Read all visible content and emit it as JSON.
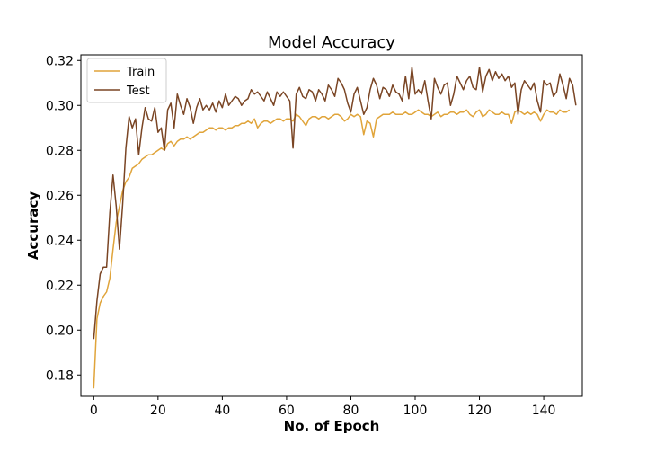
{
  "chart_data": {
    "type": "line",
    "title": "Model Accuracy",
    "xlabel": "No. of Epoch",
    "ylabel": "Accuracy",
    "xlim": [
      -4,
      152
    ],
    "ylim": [
      0.1705,
      0.3225
    ],
    "xticks": [
      0,
      20,
      40,
      60,
      80,
      100,
      120,
      140
    ],
    "yticks": [
      0.18,
      0.2,
      0.22,
      0.24,
      0.26,
      0.28,
      0.3,
      0.32
    ],
    "legend_position": "top-left",
    "grid": false,
    "series": [
      {
        "name": "Train",
        "color": "#e0a43a",
        "values": [
          0.174,
          0.205,
          0.212,
          0.215,
          0.217,
          0.223,
          0.236,
          0.248,
          0.255,
          0.262,
          0.266,
          0.268,
          0.272,
          0.273,
          0.274,
          0.276,
          0.277,
          0.278,
          0.278,
          0.279,
          0.28,
          0.281,
          0.28,
          0.283,
          0.284,
          0.282,
          0.284,
          0.285,
          0.285,
          0.286,
          0.285,
          0.286,
          0.287,
          0.288,
          0.288,
          0.289,
          0.29,
          0.29,
          0.289,
          0.29,
          0.29,
          0.289,
          0.29,
          0.29,
          0.291,
          0.291,
          0.292,
          0.292,
          0.293,
          0.292,
          0.294,
          0.29,
          0.292,
          0.293,
          0.293,
          0.292,
          0.293,
          0.294,
          0.294,
          0.293,
          0.294,
          0.294,
          0.293,
          0.296,
          0.295,
          0.293,
          0.291,
          0.294,
          0.295,
          0.295,
          0.294,
          0.295,
          0.295,
          0.294,
          0.295,
          0.296,
          0.296,
          0.295,
          0.293,
          0.294,
          0.296,
          0.295,
          0.296,
          0.295,
          0.287,
          0.293,
          0.292,
          0.286,
          0.294,
          0.295,
          0.296,
          0.296,
          0.296,
          0.297,
          0.296,
          0.296,
          0.296,
          0.297,
          0.296,
          0.296,
          0.297,
          0.298,
          0.297,
          0.296,
          0.296,
          0.295,
          0.296,
          0.297,
          0.295,
          0.296,
          0.296,
          0.297,
          0.297,
          0.296,
          0.297,
          0.297,
          0.298,
          0.296,
          0.295,
          0.297,
          0.298,
          0.295,
          0.296,
          0.298,
          0.297,
          0.296,
          0.296,
          0.297,
          0.296,
          0.296,
          0.292,
          0.297,
          0.298,
          0.297,
          0.296,
          0.297,
          0.296,
          0.297,
          0.296,
          0.293,
          0.296,
          0.298,
          0.297,
          0.297,
          0.296,
          0.298,
          0.297,
          0.297,
          0.298
        ]
      },
      {
        "name": "Test",
        "color": "#7a4524",
        "values": [
          0.196,
          0.213,
          0.225,
          0.228,
          0.228,
          0.252,
          0.269,
          0.255,
          0.236,
          0.256,
          0.281,
          0.295,
          0.29,
          0.294,
          0.278,
          0.29,
          0.299,
          0.294,
          0.293,
          0.299,
          0.288,
          0.29,
          0.28,
          0.298,
          0.301,
          0.29,
          0.305,
          0.3,
          0.296,
          0.303,
          0.299,
          0.292,
          0.299,
          0.303,
          0.298,
          0.3,
          0.298,
          0.301,
          0.297,
          0.302,
          0.299,
          0.305,
          0.3,
          0.302,
          0.304,
          0.303,
          0.3,
          0.302,
          0.303,
          0.307,
          0.305,
          0.306,
          0.304,
          0.302,
          0.306,
          0.303,
          0.3,
          0.306,
          0.304,
          0.306,
          0.304,
          0.302,
          0.281,
          0.305,
          0.308,
          0.304,
          0.303,
          0.307,
          0.306,
          0.302,
          0.307,
          0.305,
          0.302,
          0.309,
          0.307,
          0.304,
          0.312,
          0.31,
          0.307,
          0.301,
          0.297,
          0.305,
          0.308,
          0.302,
          0.296,
          0.299,
          0.307,
          0.312,
          0.309,
          0.303,
          0.308,
          0.307,
          0.304,
          0.309,
          0.306,
          0.305,
          0.302,
          0.313,
          0.303,
          0.317,
          0.305,
          0.307,
          0.305,
          0.311,
          0.302,
          0.294,
          0.312,
          0.308,
          0.305,
          0.309,
          0.31,
          0.3,
          0.305,
          0.313,
          0.31,
          0.307,
          0.311,
          0.313,
          0.308,
          0.307,
          0.317,
          0.306,
          0.313,
          0.316,
          0.311,
          0.315,
          0.312,
          0.314,
          0.311,
          0.313,
          0.308,
          0.31,
          0.296,
          0.307,
          0.311,
          0.309,
          0.307,
          0.31,
          0.302,
          0.297,
          0.311,
          0.309,
          0.31,
          0.304,
          0.306,
          0.314,
          0.309,
          0.303,
          0.312,
          0.309,
          0.3
        ]
      }
    ]
  }
}
